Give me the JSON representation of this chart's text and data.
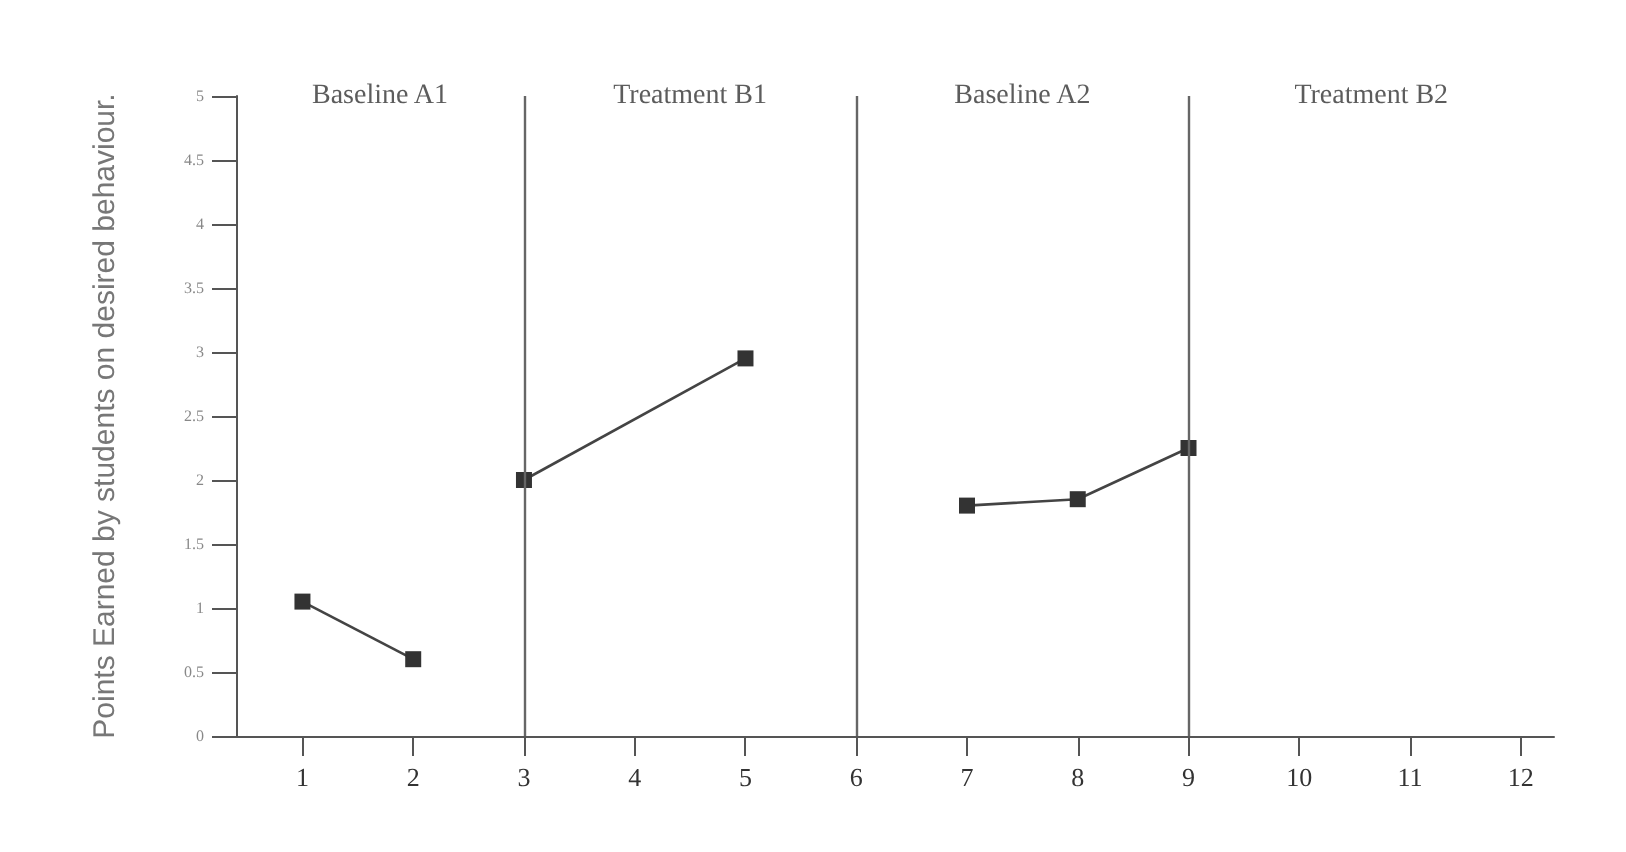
{
  "chart_data": {
    "type": "line",
    "ylabel": "Points Earned by students on desired behaviour.",
    "series": [
      {
        "color": "#444444",
        "x": [
          1,
          2
        ],
        "values": [
          1.05,
          0.6
        ]
      },
      {
        "color": "#444444",
        "x": [
          3,
          5
        ],
        "values": [
          2.0,
          2.95
        ]
      },
      {
        "color": "#444444",
        "x": [
          7,
          8,
          9
        ],
        "values": [
          1.8,
          1.85,
          2.25
        ]
      }
    ],
    "xlim": [
      0.4,
      12.3
    ],
    "xticks": [
      1,
      2,
      3,
      4,
      5,
      6,
      7,
      8,
      9,
      10,
      11,
      12
    ],
    "ylim": [
      0,
      5
    ],
    "yticks": [
      0,
      0.5,
      1,
      1.5,
      2,
      2.5,
      3,
      3.5,
      4,
      4.5,
      5
    ],
    "ref_lines": [
      {
        "axis": "x",
        "value": 3,
        "color": "#666666"
      },
      {
        "axis": "x",
        "value": 6,
        "color": "#666666"
      },
      {
        "axis": "x",
        "value": 9,
        "color": "#666666"
      }
    ],
    "annotations": [
      "Baseline A1",
      "Treatment B1",
      "Baseline A2",
      "Treatment B2"
    ],
    "grid": false,
    "marker": "square",
    "line_style": "solid"
  }
}
